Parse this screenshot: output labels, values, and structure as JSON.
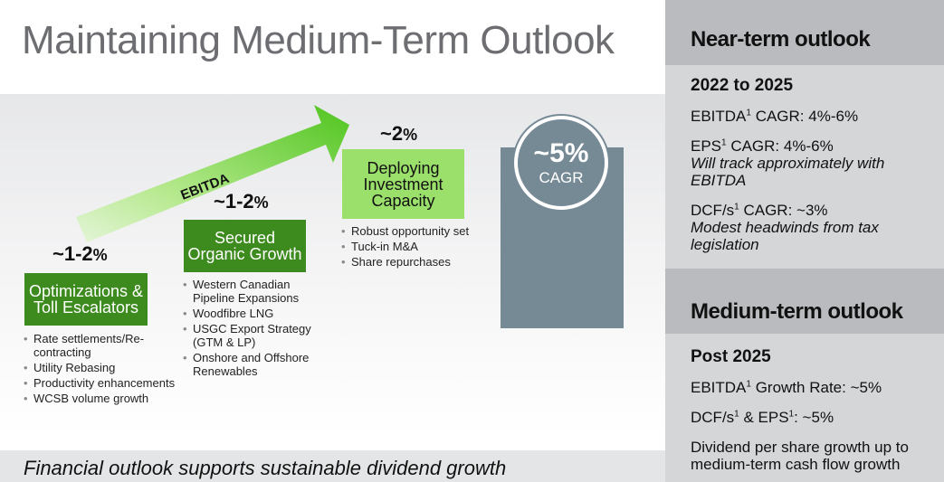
{
  "title": "Maintaining Medium-Term Outlook",
  "colors": {
    "title_gray": "#6d6e71",
    "dark_green": "#3d8b1e",
    "light_green": "#9be06b",
    "arrow_green": "#5ccb28",
    "slate": "#768a95",
    "panel_bg": "#d5d6d8",
    "panel_head": "#b9bbbe"
  },
  "diagram": {
    "arrow_label": "EBITDA",
    "steps": [
      {
        "pct": "~1-2",
        "pct_unit": "%",
        "box_lines": [
          "Optimizations &",
          "Toll Escalators"
        ],
        "bullets": [
          "Rate settlements/Re-",
          "contracting",
          "Utility Rebasing",
          "Productivity enhancements",
          "WCSB volume growth"
        ]
      },
      {
        "pct": "~1-2",
        "pct_unit": "%",
        "box_lines": [
          "Secured",
          "Organic Growth"
        ],
        "bullets": [
          "Western Canadian",
          "Pipeline Expansions",
          "Woodfibre LNG",
          "USGC Export Strategy",
          "(GTM & LP)",
          "Onshore and Offshore",
          "Renewables"
        ]
      },
      {
        "pct": "~2",
        "pct_unit": "%",
        "box_lines": [
          "Deploying",
          "Investment",
          "Capacity"
        ],
        "bullets": [
          "Robust opportunity set",
          "Tuck-in M&A",
          "Share repurchases"
        ]
      }
    ],
    "total": {
      "value": "~5%",
      "label": "CAGR"
    }
  },
  "footer": "Financial outlook supports sustainable dividend growth",
  "panel": {
    "near_term": {
      "heading": "Near-term outlook",
      "period": "2022 to 2025",
      "ebitda_label": "EBITDA",
      "ebitda_rest": " CAGR: 4%-6%",
      "eps_label": "EPS",
      "eps_rest": " CAGR: 4%-6%",
      "eps_note_1": "Will track approximately with",
      "eps_note_2": "EBITDA",
      "dcf_label": "DCF/s",
      "dcf_rest": " CAGR: ~3%",
      "dcf_note_1": "Modest headwinds from tax",
      "dcf_note_2": "legislation"
    },
    "medium_term": {
      "heading": "Medium-term outlook",
      "period": "Post 2025",
      "ebitda_label": "EBITDA",
      "ebitda_rest": " Growth Rate: ~5%",
      "dcf_label": "DCF/s",
      "eps_mid": " & EPS",
      "dcf_eps_rest": ": ~5%",
      "dividend_1": "Dividend per share growth up to",
      "dividend_2": "medium-term cash flow growth"
    },
    "footnote_marker": "1"
  }
}
